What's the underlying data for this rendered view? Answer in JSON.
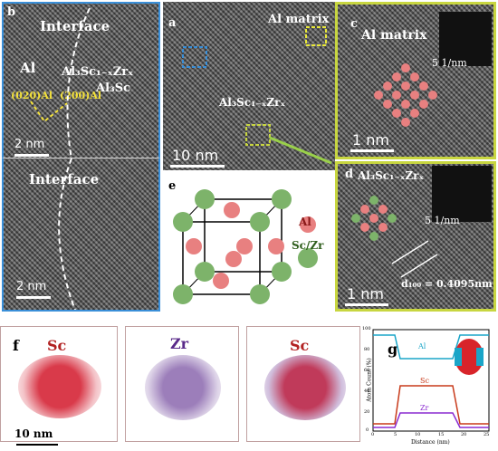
{
  "panels": {
    "a": {
      "label": "a",
      "al_matrix": "Al matrix",
      "phase": "Al₃Sc₁₋ₓZrₓ",
      "scale": "10 nm"
    },
    "b": {
      "label": "b",
      "interface": "Interface",
      "al": "Al",
      "phase": "Al₃Sc₁₋ₓZrₓ",
      "al3sc": "Al₃Sc",
      "plane1": "(020)Al",
      "plane2": "(200)Al",
      "scale": "2 nm",
      "interface2": "Interface",
      "scale2": "2 nm"
    },
    "c": {
      "label": "c",
      "title": "Al matrix",
      "fft_scale": "5 1/nm",
      "scale": "1 nm"
    },
    "d": {
      "label": "d",
      "title": "Al₃Sc₁₋ₓZrₓ",
      "fft_scale": "5 1/nm",
      "spacing": "d₁₀₀ = 0.4095nm",
      "scale": "1 nm"
    },
    "e": {
      "label": "e",
      "al": "Al",
      "sczr": "Sc/Zr"
    },
    "f": {
      "label": "f",
      "sc": "Sc",
      "zr": "Zr",
      "sc2": "Sc",
      "scale": "10 nm"
    },
    "g": {
      "label": "g",
      "al": "Al",
      "sc": "Sc",
      "zr": "Zr",
      "ylabel": "Atom Count (%)",
      "xlabel": "Distance (nm)",
      "yticks": [
        "100",
        "80",
        "60",
        "40",
        "20",
        "0"
      ],
      "xticks": [
        "0",
        "5",
        "10",
        "15",
        "20",
        "25"
      ]
    }
  },
  "colors": {
    "blue_frame": "#3a8fd8",
    "yellow_frame": "#c8d640",
    "al_atom": "#e88080",
    "sczr_atom": "#7db36a"
  }
}
